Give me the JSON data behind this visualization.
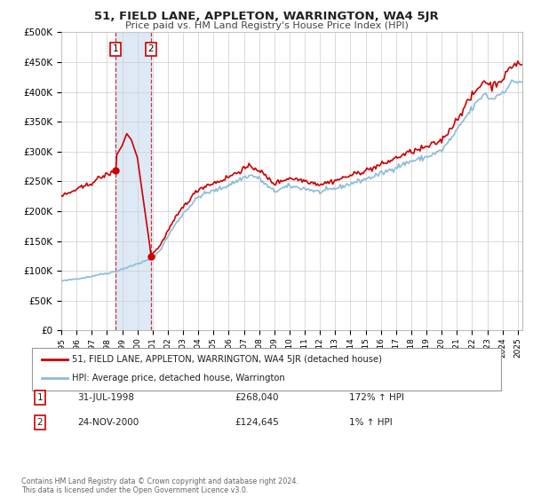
{
  "title": "51, FIELD LANE, APPLETON, WARRINGTON, WA4 5JR",
  "subtitle": "Price paid vs. HM Land Registry's House Price Index (HPI)",
  "legend_label_red": "51, FIELD LANE, APPLETON, WARRINGTON, WA4 5JR (detached house)",
  "legend_label_blue": "HPI: Average price, detached house, Warrington",
  "transaction1_date": "31-JUL-1998",
  "transaction1_price": "£268,040",
  "transaction1_hpi": "172% ↑ HPI",
  "transaction1_date_val": 1998.58,
  "transaction1_price_val": 268040,
  "transaction2_date": "24-NOV-2000",
  "transaction2_price": "£124,645",
  "transaction2_hpi": "1% ↑ HPI",
  "transaction2_date_val": 2000.9,
  "transaction2_price_val": 124645,
  "footer": "Contains HM Land Registry data © Crown copyright and database right 2024.\nThis data is licensed under the Open Government Licence v3.0.",
  "ylim": [
    0,
    500000
  ],
  "xlim_start": 1995.0,
  "xlim_end": 2025.3,
  "shaded_region_start": 1998.58,
  "shaded_region_end": 2000.9,
  "red_color": "#cc0000",
  "blue_color": "#8bbcda",
  "shade_color": "#ddeaf5",
  "background_color": "#ffffff",
  "grid_color": "#cccccc"
}
